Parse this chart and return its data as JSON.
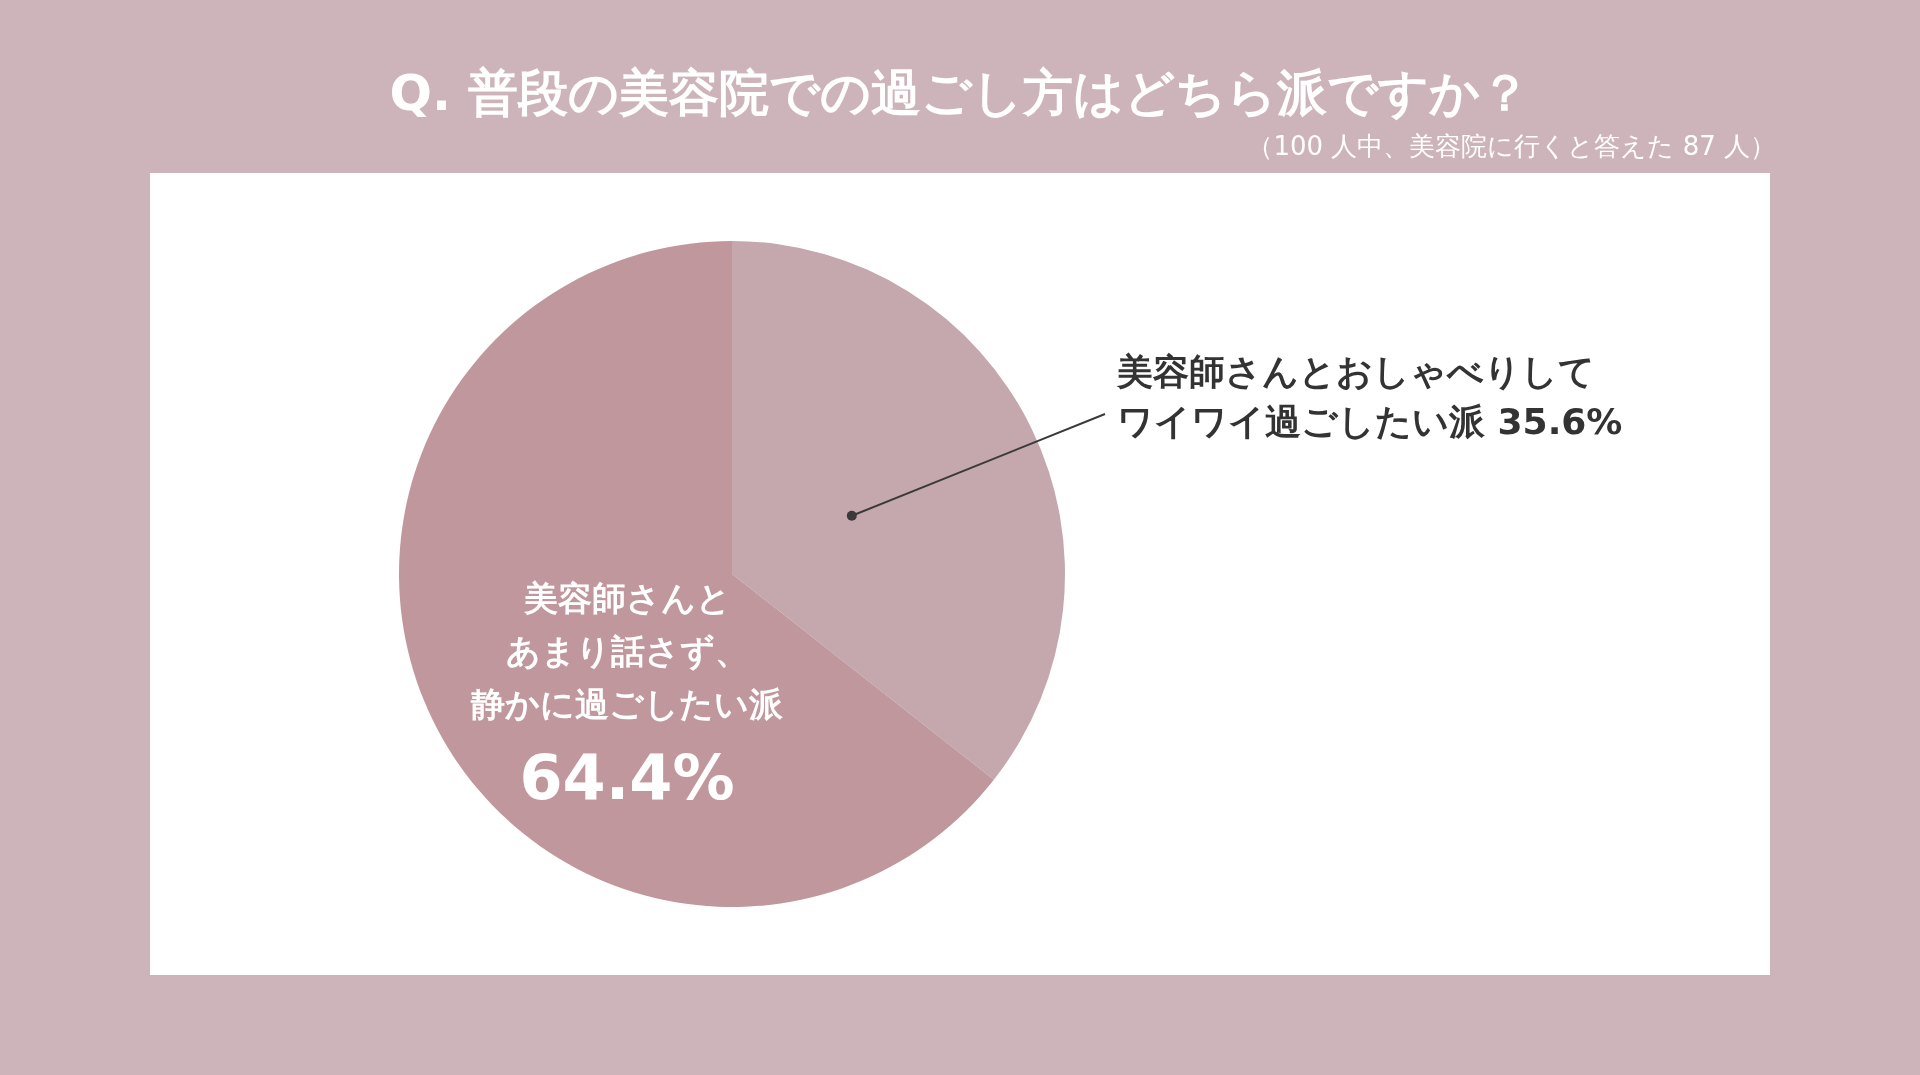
{
  "chart_data": {
    "type": "pie",
    "title": "Q. 普段の美容院での過ごし方はどちら派ですか？",
    "subtitle": "（100 人中、美容院に行くと答えた 87 人）",
    "categories": [
      "美容師さんとおしゃべりしてワイワイ過ごしたい派",
      "美容師さんとあまり話さず、静かに過ごしたい派"
    ],
    "values": [
      35.6,
      64.4
    ],
    "colors": [
      "#c4a8ad",
      "#bf979c"
    ],
    "value_labels": [
      "35.6%",
      "64.4%"
    ]
  }
}
